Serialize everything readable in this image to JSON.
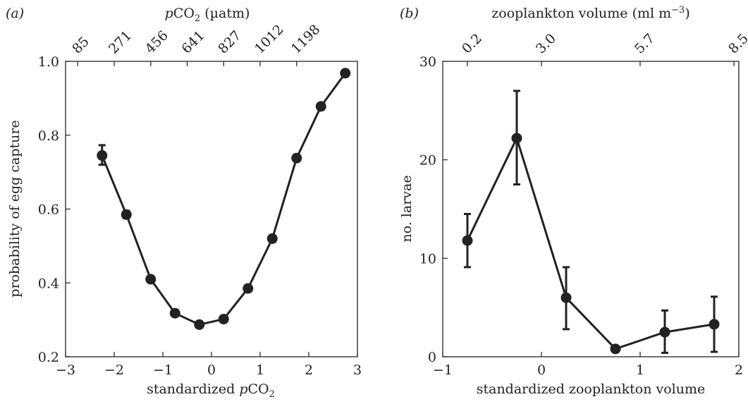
{
  "chart_data": [
    {
      "type": "line",
      "panel_label": "(a)",
      "xlabel_main": "standardized ",
      "xlabel_italic": "p",
      "xlabel_rest": "CO",
      "xlabel_sub": "2",
      "ylabel": "probability of egg capture",
      "top_label_italic": "p",
      "top_label_rest": "CO",
      "top_label_sub": "2",
      "top_label_unit": " (µatm)",
      "xlim": [
        -3,
        3
      ],
      "ylim": [
        0.2,
        1.0
      ],
      "x_ticks": [
        "−3",
        "−2",
        "−1",
        "0",
        "1",
        "2",
        "3"
      ],
      "x_tick_values": [
        -3,
        -2,
        -1,
        0,
        1,
        2,
        3
      ],
      "y_ticks": [
        "0.2",
        "0.4",
        "0.6",
        "0.8",
        "1.0"
      ],
      "y_tick_values": [
        0.2,
        0.4,
        0.6,
        0.8,
        1.0
      ],
      "top_ticks": [
        "85",
        "271",
        "456",
        "641",
        "827",
        "1012",
        "1198"
      ],
      "top_tick_values": [
        -2.75,
        -2.0,
        -1.25,
        -0.5,
        0.25,
        1.0,
        1.75
      ],
      "x": [
        -2.25,
        -1.75,
        -1.25,
        -0.75,
        -0.25,
        0.25,
        0.75,
        1.25,
        1.75,
        2.25,
        2.75
      ],
      "y": [
        0.745,
        0.585,
        0.41,
        0.318,
        0.287,
        0.302,
        0.385,
        0.52,
        0.738,
        0.878,
        0.968
      ],
      "err_low": [
        0.72,
        0.575,
        0.405,
        0.314,
        0.284,
        0.298,
        0.381,
        0.516,
        0.734,
        0.874,
        0.965
      ],
      "err_high": [
        0.773,
        0.595,
        0.415,
        0.322,
        0.29,
        0.306,
        0.389,
        0.524,
        0.742,
        0.882,
        0.971
      ]
    },
    {
      "type": "line",
      "panel_label": "(b)",
      "xlabel": "standardized zooplankton volume",
      "ylabel": "no. larvae",
      "top_label_main": "zooplankton volume (ml m",
      "top_label_sup": "−3",
      "top_label_close": ")",
      "xlim": [
        -1,
        2
      ],
      "ylim": [
        0,
        30
      ],
      "x_ticks": [
        "−1",
        "0",
        "1",
        "2"
      ],
      "x_tick_values": [
        -1,
        0,
        1,
        2
      ],
      "y_ticks": [
        "0",
        "10",
        "20",
        "30"
      ],
      "y_tick_values": [
        0,
        10,
        20,
        30
      ],
      "top_ticks": [
        "0.2",
        "3.0",
        "5.7",
        "8.5"
      ],
      "top_tick_values": [
        -0.75,
        0.0,
        1.0,
        1.95
      ],
      "x": [
        -0.75,
        -0.25,
        0.25,
        0.75,
        1.25,
        1.75
      ],
      "y": [
        11.8,
        22.2,
        6.0,
        0.8,
        2.5,
        3.3
      ],
      "err_low": [
        9.1,
        17.5,
        2.8,
        0.6,
        0.4,
        0.5
      ],
      "err_high": [
        14.5,
        27.0,
        9.1,
        1.0,
        4.7,
        6.1
      ]
    }
  ]
}
